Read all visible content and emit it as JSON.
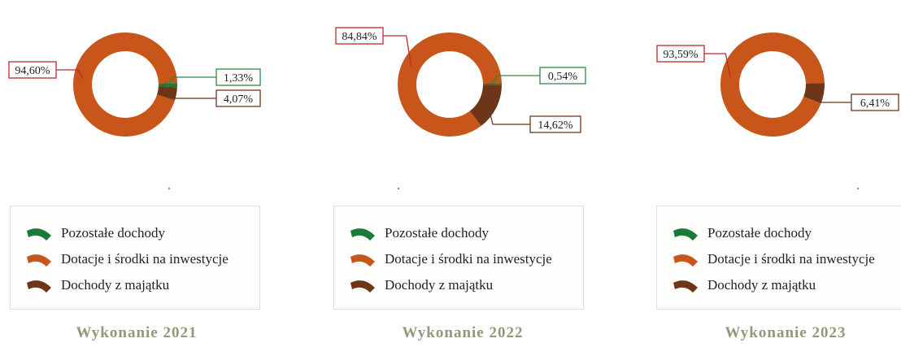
{
  "colors": {
    "pozostale": "#1a7a3a",
    "dotacje": "#c8561a",
    "majatek": "#6e3618",
    "label_border_dotacje": "#c0282a",
    "label_border_pozostale": "#2e8b3f",
    "label_border_majatek": "#6e3618"
  },
  "legend_items": [
    "Pozostałe dochody",
    "Dotacje i środki na inwestycje",
    "Dochody z majątku"
  ],
  "chart_data": [
    {
      "type": "pie",
      "title": "Wykonanie 2021",
      "labels": [
        "Pozostałe dochody",
        "Dotacje i środki na inwestycje",
        "Dochody z majątku"
      ],
      "values": [
        1.33,
        94.6,
        4.07
      ],
      "value_labels": [
        "1,33%",
        "94,60%",
        "4,07%"
      ]
    },
    {
      "type": "pie",
      "title": "Wykonanie 2022",
      "labels": [
        "Pozostałe dochody",
        "Dotacje i środki na inwestycje",
        "Dochody z majątku"
      ],
      "values": [
        0.54,
        84.84,
        14.62
      ],
      "value_labels": [
        "0,54%",
        "84,84%",
        "14,62%"
      ]
    },
    {
      "type": "pie",
      "title": "Wykonanie 2023",
      "labels": [
        "Dotacje i środki na inwestycje",
        "Dochody z majątku"
      ],
      "values": [
        93.59,
        6.41
      ],
      "value_labels": [
        "93,59%",
        "6,41%"
      ]
    }
  ]
}
